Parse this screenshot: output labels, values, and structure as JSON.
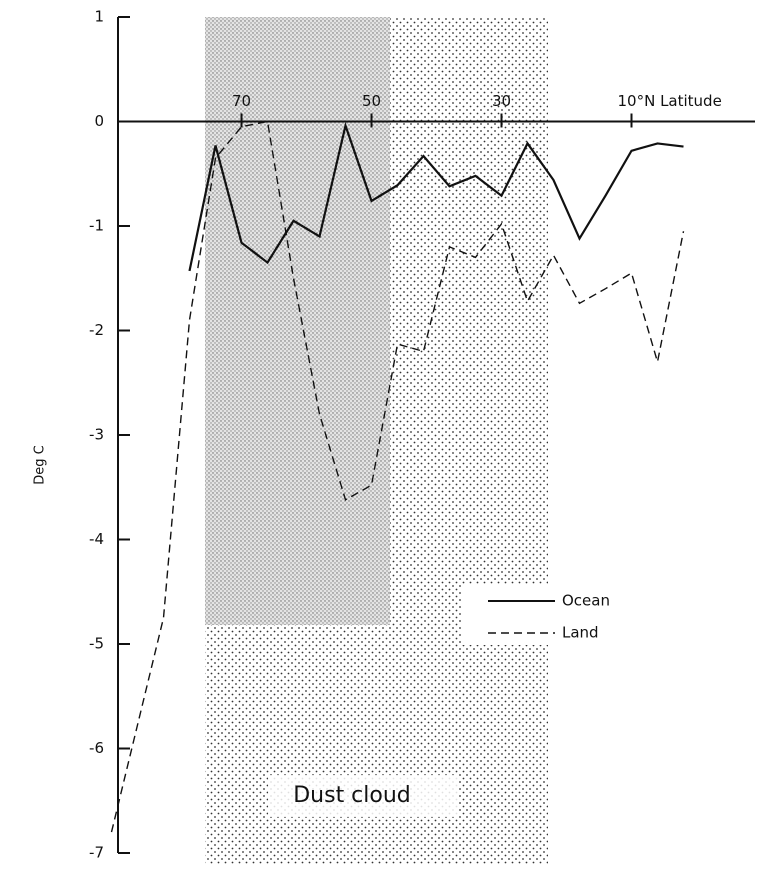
{
  "chart_data": {
    "type": "line",
    "ylabel": "Deg C",
    "annotation": "Dust cloud",
    "xlim": [
      89,
      -9
    ],
    "xticks": [
      70,
      50,
      30,
      {
        "value": 10,
        "label": "10°N Latitude"
      }
    ],
    "ylim": [
      -7,
      1
    ],
    "yticks": [
      1,
      0,
      -1,
      -2,
      -3,
      -4,
      -5,
      -6,
      -7
    ],
    "series": [
      {
        "name": "Ocean",
        "color": "#111111",
        "dash": "solid",
        "x": [
          78,
          74,
          70,
          66,
          62,
          58,
          54,
          50,
          46,
          42,
          38,
          34,
          30,
          26,
          22,
          18,
          14,
          10,
          6,
          2
        ],
        "values": [
          -1.43,
          -0.23,
          -1.16,
          -1.35,
          -0.95,
          -1.1,
          -0.04,
          -0.76,
          -0.61,
          -0.33,
          -0.62,
          -0.52,
          -0.71,
          -0.21,
          -0.56,
          -1.12,
          -0.71,
          -0.28,
          -0.21,
          -0.24
        ]
      },
      {
        "name": "Land",
        "color": "#111111",
        "dash": "dashed",
        "x": [
          90,
          82,
          78,
          74,
          70,
          66,
          62,
          58,
          54,
          50,
          46,
          42,
          38,
          34,
          30,
          26,
          22,
          18,
          14,
          10,
          6,
          2
        ],
        "values": [
          -6.8,
          -4.75,
          -1.9,
          -0.35,
          -0.05,
          0,
          -1.5,
          -2.8,
          -3.62,
          -3.48,
          -2.13,
          -2.2,
          -1.2,
          -1.3,
          -0.98,
          -1.72,
          -1.28,
          -1.74,
          -1.6,
          -1.45,
          -2.3,
          -1.05
        ]
      }
    ]
  }
}
